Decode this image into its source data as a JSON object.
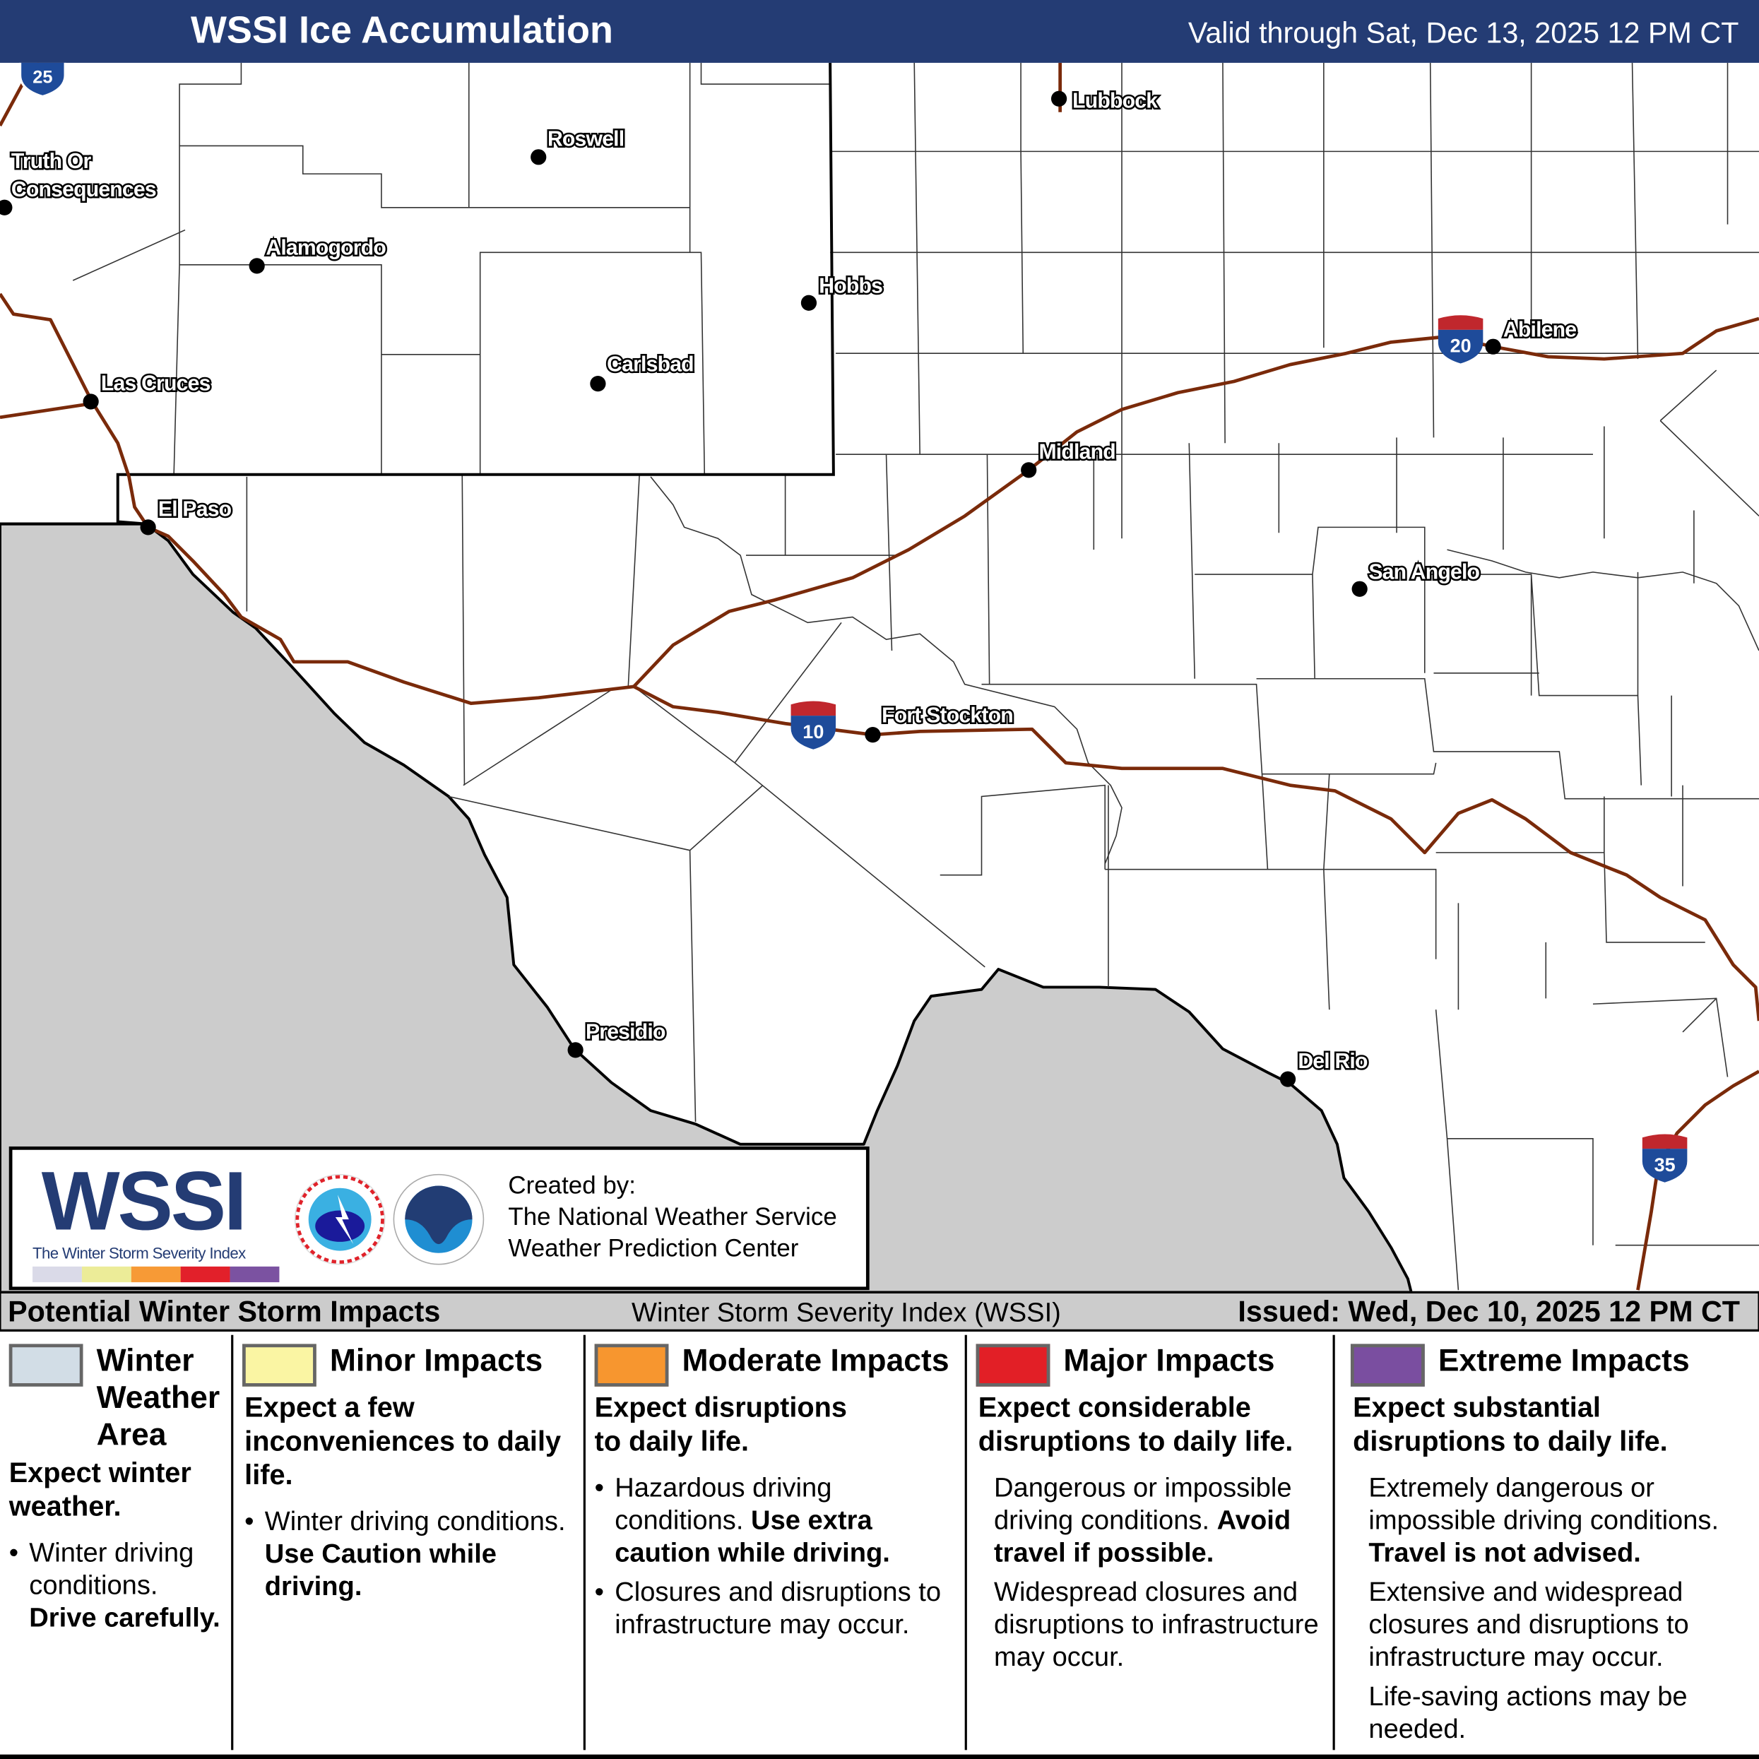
{
  "header": {
    "title": "WSSI Ice Accumulation",
    "valid": "Valid through Sat, Dec 13, 2025 12 PM CT",
    "background": "#243c74"
  },
  "map": {
    "cities": [
      {
        "name": "Lubbock"
      },
      {
        "name": "Roswell"
      },
      {
        "name": "Truth Or"
      },
      {
        "name": "Consequences"
      },
      {
        "name": "Alamogordo"
      },
      {
        "name": "Hobbs"
      },
      {
        "name": "Abilene"
      },
      {
        "name": "Las Cruces"
      },
      {
        "name": "Carlsbad"
      },
      {
        "name": "Midland"
      },
      {
        "name": "El Paso"
      },
      {
        "name": "San Angelo"
      },
      {
        "name": "Fort Stockton"
      },
      {
        "name": "Presidio"
      },
      {
        "name": "Del Rio"
      }
    ],
    "interstates": [
      "25",
      "20",
      "10",
      "35"
    ],
    "highway_color": "#7a2a0a",
    "outside_area_color": "#cccccc"
  },
  "logo": {
    "wssi": "WSSI",
    "wssi_subtitle": "The Winter Storm Severity Index",
    "scale_colors": [
      "#dadae8",
      "#ecec98",
      "#f79a36",
      "#e2202a",
      "#7b52a1"
    ],
    "created_by": "Created by:",
    "org1": "The National Weather Service",
    "org2": "Weather Prediction Center"
  },
  "legend": {
    "heading": "Potential Winter Storm Impacts",
    "index_name": "Winter Storm Severity Index (WSSI)",
    "issued": "Issued: Wed, Dec 10, 2025 12 PM CT",
    "categories": [
      {
        "title": "Winter Weather Area",
        "color": "#d2dde6",
        "summary": "Expect winter weather.",
        "b1": "Winter driving conditions.",
        "b1_bold": "Drive carefully."
      },
      {
        "title": "Minor Impacts",
        "color": "#faf5a3",
        "summary": "Expect a few inconveniences to daily life.",
        "b1": "Winter driving conditions.",
        "b1_bold": "Use Caution while driving."
      },
      {
        "title": "Moderate Impacts",
        "color": "#f7962f",
        "summary": "Expect disruptions to daily life.",
        "b1": "Hazardous driving conditions.",
        "b1_bold": "Use extra caution while driving.",
        "b2": "Closures and disruptions to infrastructure may occur."
      },
      {
        "title": "Major Impacts",
        "color": "#e21f26",
        "summary": "Expect considerable disruptions to daily life.",
        "b1": "Dangerous or impossible driving conditions.",
        "b1_bold": "Avoid travel if possible.",
        "b2": "Widespread closures and disruptions to infrastructure may occur."
      },
      {
        "title": "Extreme Impacts",
        "color": "#7a4ea0",
        "summary": "Expect substantial disruptions to daily life.",
        "b1": "Extremely dangerous or impossible driving conditions.",
        "b1_bold": "Travel is not advised.",
        "b2": "Extensive and widespread closures and disruptions to infrastructure may occur.",
        "b3": "Life-saving actions may be needed."
      }
    ]
  }
}
